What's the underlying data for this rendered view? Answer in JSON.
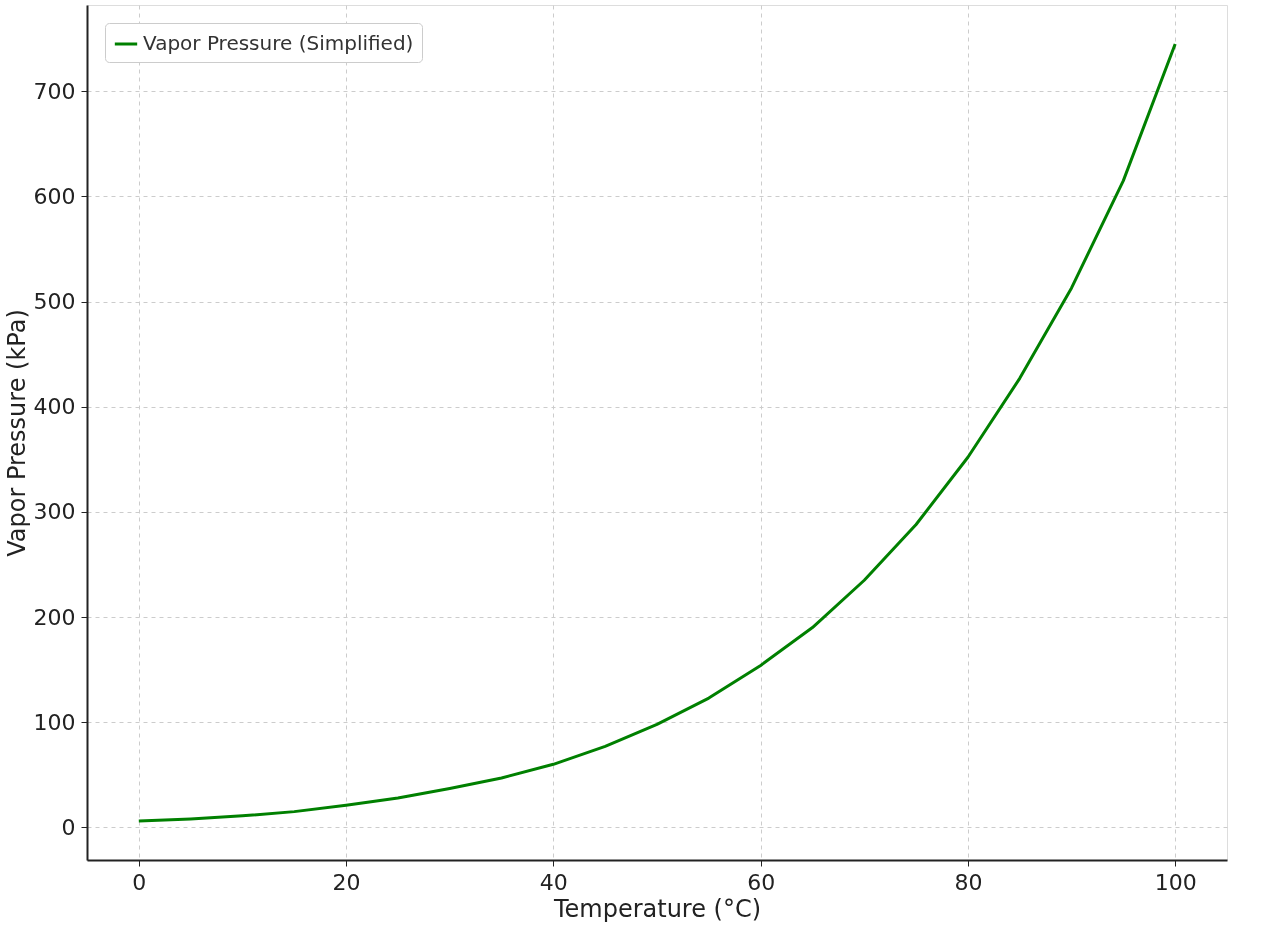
{
  "chart_data": {
    "type": "line",
    "xlabel": "Temperature (°C)",
    "ylabel": "Vapor Pressure (kPa)",
    "x": [
      0,
      5,
      10,
      15,
      20,
      25,
      30,
      35,
      40,
      45,
      50,
      55,
      60,
      65,
      70,
      75,
      80,
      85,
      90,
      95,
      100
    ],
    "series": [
      {
        "name": "Vapor Pressure (Simplified)",
        "color": "#008000",
        "values": [
          6,
          8,
          11,
          15,
          21,
          28,
          37,
          47,
          60,
          77,
          98,
          123,
          154,
          190,
          235,
          288,
          352,
          427,
          513,
          615,
          745
        ]
      }
    ],
    "xlim": [
      -5,
      105
    ],
    "ylim": [
      -31,
      782
    ],
    "xticks": [
      0,
      20,
      40,
      60,
      80,
      100
    ],
    "yticks": [
      0,
      100,
      200,
      300,
      400,
      500,
      600,
      700
    ],
    "grid": true,
    "legend": "top left",
    "marker": "none",
    "line_style": "solid"
  }
}
